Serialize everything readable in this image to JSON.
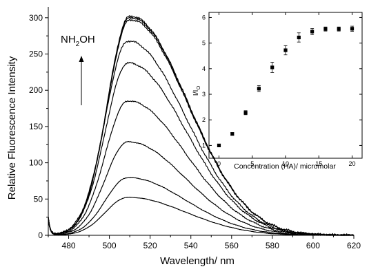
{
  "chart_data": [
    {
      "type": "line",
      "title": "",
      "xlabel": "Wavelength/ nm",
      "ylabel": "Relative Fluorescence Intensity",
      "xlim": [
        470,
        620
      ],
      "ylim": [
        0,
        315
      ],
      "xticks": [
        480,
        500,
        520,
        540,
        560,
        580,
        600,
        620
      ],
      "yticks": [
        0,
        50,
        100,
        150,
        200,
        250,
        300
      ],
      "xtick_labels": [
        "480",
        "500",
        "520",
        "540",
        "560",
        "580",
        "600",
        "620"
      ],
      "ytick_labels": [
        "0",
        "50",
        "100",
        "150",
        "200",
        "250",
        "300"
      ],
      "annotation": {
        "base": "NH",
        "sub": "2",
        "rest": "OH",
        "arrow": "up"
      },
      "series": [
        {
          "peak_x": 509,
          "peak_y": 52
        },
        {
          "peak_x": 509,
          "peak_y": 79
        },
        {
          "peak_x": 509,
          "peak_y": 128
        },
        {
          "peak_x": 509,
          "peak_y": 184
        },
        {
          "peak_x": 509,
          "peak_y": 236
        },
        {
          "peak_x": 509,
          "peak_y": 266
        },
        {
          "peak_x": 510,
          "peak_y": 295
        },
        {
          "peak_x": 510,
          "peak_y": 298
        },
        {
          "peak_x": 510,
          "peak_y": 300
        }
      ]
    },
    {
      "type": "scatter",
      "title": "",
      "xlabel": "Concentration (HA)/ micromolar",
      "ylabel": {
        "base": "I/I",
        "sub": "O"
      },
      "xlim": [
        -1.5,
        21.5
      ],
      "ylim": [
        0.5,
        6.2
      ],
      "xticks": [
        0,
        5,
        10,
        15,
        20
      ],
      "yticks": [
        1,
        2,
        3,
        4,
        5,
        6
      ],
      "xtick_labels": [
        "0",
        "5",
        "10",
        "15",
        "20"
      ],
      "ytick_labels": [
        "1",
        "2",
        "3",
        "4",
        "5",
        "6"
      ],
      "x": [
        0,
        2,
        4,
        6,
        8,
        10,
        12,
        14,
        16,
        18,
        20
      ],
      "y": [
        1.0,
        1.45,
        2.28,
        3.22,
        4.05,
        4.72,
        5.22,
        5.45,
        5.55,
        5.55,
        5.56
      ],
      "err": [
        0.04,
        0.05,
        0.08,
        0.12,
        0.2,
        0.18,
        0.18,
        0.12,
        0.08,
        0.08,
        0.1
      ]
    }
  ]
}
